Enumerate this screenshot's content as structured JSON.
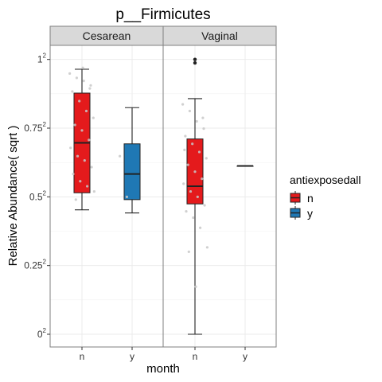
{
  "chart_data": {
    "type": "boxplot",
    "title": "p__Firmicutes",
    "xlabel": "month",
    "ylabel": "Relative Abundance( sqrt )",
    "ylim": [
      0,
      1.05
    ],
    "y_ticks": [
      {
        "value": 0,
        "base": "0",
        "exp": "2"
      },
      {
        "value": 0.25,
        "base": "0.25",
        "exp": "2"
      },
      {
        "value": 0.5,
        "base": "0.5",
        "exp": "2"
      },
      {
        "value": 0.75,
        "base": "0.75",
        "exp": "2"
      },
      {
        "value": 1,
        "base": "1",
        "exp": "2"
      }
    ],
    "categories": [
      "n",
      "y"
    ],
    "facets": [
      {
        "label": "Cesarean",
        "boxes": [
          {
            "category": "n",
            "group": "n",
            "min": 0.205,
            "q1": 0.265,
            "median": 0.485,
            "q3": 0.77,
            "max": 0.93,
            "outliers": [],
            "jitter": [
              0.9,
              0.87,
              0.85,
              0.82,
              0.78,
              0.72,
              0.66,
              0.62,
              0.58,
              0.55,
              0.5,
              0.46,
              0.42,
              0.4,
              0.37,
              0.34,
              0.31,
              0.29,
              0.27,
              0.24,
              0.94,
              0.8
            ]
          },
          {
            "category": "y",
            "group": "y",
            "min": 0.195,
            "q1": 0.24,
            "median": 0.34,
            "q3": 0.48,
            "max": 0.68,
            "outliers": [],
            "jitter": [
              0.42,
              0.25
            ]
          }
        ]
      },
      {
        "label": "Vaginal",
        "boxes": [
          {
            "category": "n",
            "group": "n",
            "min": 0.0,
            "q1": 0.225,
            "median": 0.29,
            "q3": 0.505,
            "max": 0.735,
            "outliers": [
              1.0,
              0.975
            ],
            "jitter": [
              0.7,
              0.66,
              0.6,
              0.56,
              0.52,
              0.48,
              0.44,
              0.41,
              0.38,
              0.35,
              0.32,
              0.3,
              0.27,
              0.25,
              0.22,
              0.2,
              0.18,
              0.15,
              0.1,
              0.09,
              0.03,
              0.62,
              0.45
            ]
          },
          {
            "category": "y",
            "group": "y",
            "min": 0.375,
            "q1": 0.375,
            "median": 0.375,
            "q3": 0.375,
            "max": 0.375,
            "outliers": [],
            "jitter": []
          }
        ]
      }
    ],
    "legend": {
      "title": "antiexposedall",
      "position": "right",
      "items": [
        {
          "label": "n",
          "color": "#e41a1c"
        },
        {
          "label": "y",
          "color": "#1f78b4"
        }
      ]
    }
  },
  "colors": {
    "n": "#e41a1c",
    "y": "#1f78b4",
    "jitter": "#c8c8c8",
    "strip_bg": "#d9d9d9",
    "border": "#7f7f7f",
    "grid": "#ebebeb"
  }
}
